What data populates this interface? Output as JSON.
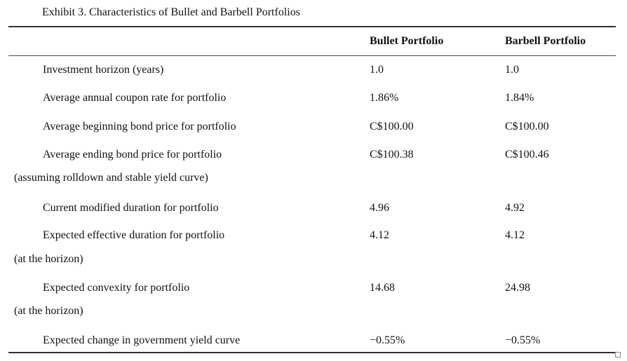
{
  "exhibit": {
    "title": "Exhibit 3. Characteristics of Bullet and Barbell Portfolios",
    "headers": [
      "Bullet Portfolio",
      "Barbell Portfolio"
    ],
    "rows": [
      {
        "label": "Investment horizon (years)",
        "sub": "",
        "bullet": "1.0",
        "barbell": "1.0"
      },
      {
        "label": "Average annual coupon rate for portfolio",
        "sub": "",
        "bullet": "1.86%",
        "barbell": "1.84%"
      },
      {
        "label": "Average beginning bond price for portfolio",
        "sub": "",
        "bullet": "C$100.00",
        "barbell": "C$100.00"
      },
      {
        "label": "Average ending bond price for portfolio",
        "sub": "(assuming rolldown and stable yield curve)",
        "bullet": "C$100.38",
        "barbell": "C$100.46"
      },
      {
        "label": "Current modified duration for portfolio",
        "sub": "",
        "bullet": "4.96",
        "barbell": "4.92"
      },
      {
        "label": "Expected effective duration for portfolio",
        "sub": "(at the horizon)",
        "bullet": "4.12",
        "barbell": "4.12"
      },
      {
        "label": "Expected convexity for portfolio",
        "sub": "(at the horizon)",
        "bullet": "14.68",
        "barbell": "24.98"
      },
      {
        "label": "Expected change in government yield curve",
        "sub": "",
        "bullet": "−0.55%",
        "barbell": "−0.55%"
      }
    ]
  }
}
